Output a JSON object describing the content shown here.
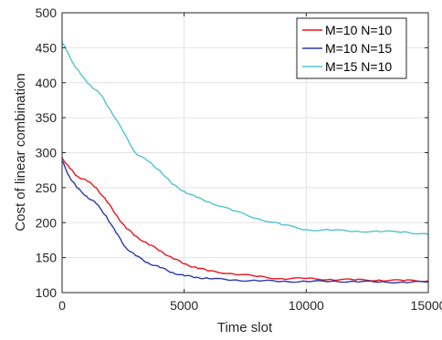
{
  "chart_data": {
    "type": "line",
    "title": "",
    "xlabel": "Time slot",
    "ylabel": "Cost of linear combination",
    "xlim": [
      0,
      15000
    ],
    "ylim": [
      100,
      500
    ],
    "xticks": [
      0,
      5000,
      10000,
      15000
    ],
    "yticks": [
      100,
      150,
      200,
      250,
      300,
      350,
      400,
      450,
      500
    ],
    "grid": true,
    "legend_position": "top-right",
    "series": [
      {
        "name": "M=10 N=10",
        "color": "#e8151b",
        "x": [
          0,
          300,
          600,
          1000,
          1400,
          1800,
          2200,
          2600,
          3000,
          3500,
          4000,
          4500,
          5000,
          5500,
          6000,
          7000,
          8000,
          9000,
          10000,
          11000,
          12000,
          13000,
          14000,
          15000
        ],
        "y": [
          293,
          278,
          267,
          260,
          250,
          232,
          212,
          193,
          181,
          170,
          160,
          150,
          141,
          136,
          131,
          127,
          123,
          120,
          120,
          119,
          118,
          118,
          117,
          117
        ]
      },
      {
        "name": "M=10 N=15",
        "color": "#2b3aa8",
        "x": [
          0,
          300,
          600,
          1000,
          1400,
          1800,
          2200,
          2600,
          3000,
          3500,
          4000,
          4500,
          5000,
          5500,
          6000,
          7000,
          8000,
          9000,
          10000,
          11000,
          12000,
          13000,
          14000,
          15000
        ],
        "y": [
          288,
          266,
          250,
          238,
          227,
          210,
          186,
          165,
          153,
          143,
          136,
          129,
          124,
          122,
          120,
          118,
          117,
          116,
          116,
          116,
          116,
          115,
          115,
          115
        ]
      },
      {
        "name": "M=15 N=10",
        "color": "#52c3d1",
        "x": [
          0,
          200,
          500,
          800,
          1200,
          1600,
          2000,
          2500,
          3000,
          3500,
          4000,
          4500,
          5000,
          5500,
          6000,
          7000,
          8000,
          9000,
          10000,
          11000,
          12000,
          13000,
          14000,
          15000
        ],
        "y": [
          458,
          445,
          425,
          410,
          395,
          382,
          360,
          330,
          300,
          288,
          275,
          255,
          245,
          236,
          230,
          217,
          206,
          197,
          190,
          189,
          188,
          187,
          187,
          183
        ]
      }
    ]
  }
}
